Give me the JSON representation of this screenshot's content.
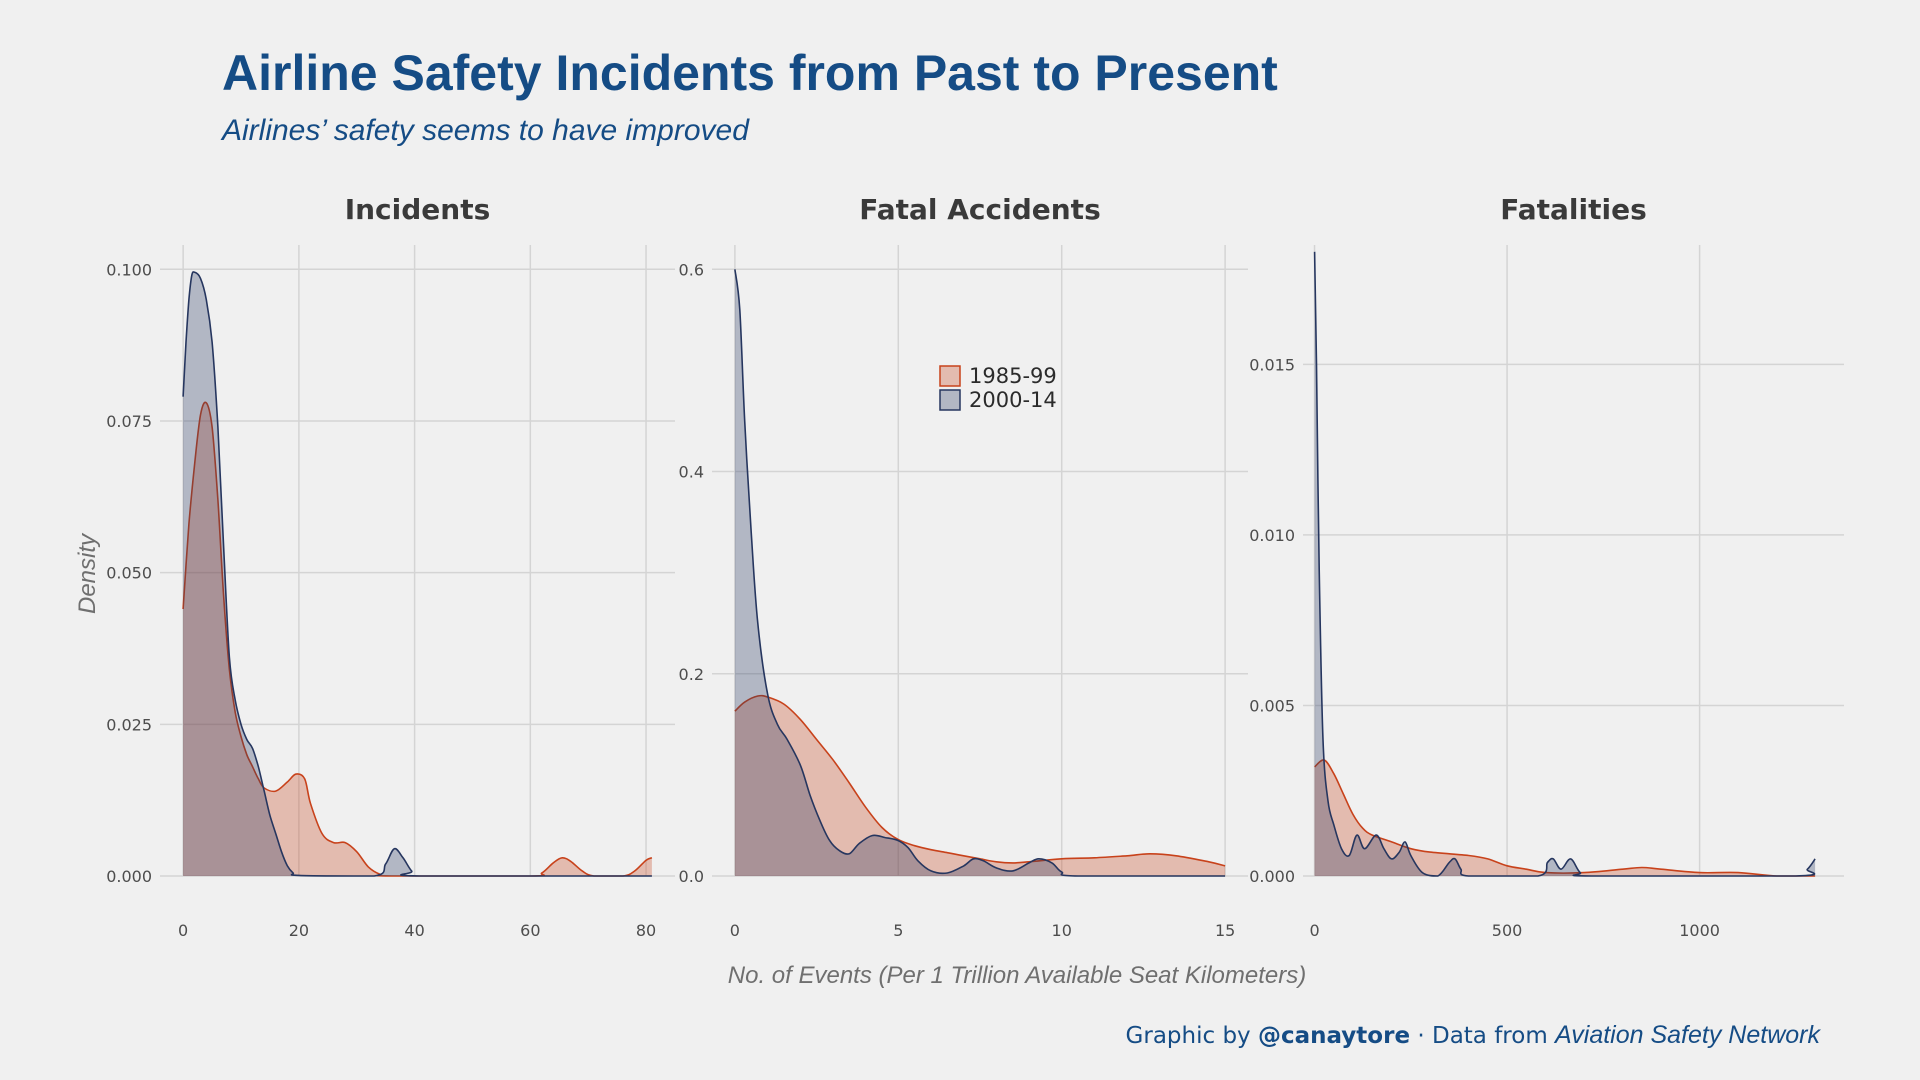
{
  "header": {
    "title": "Airline Safety Incidents from Past to Present",
    "subtitle": "Airlines’ safety seems to have improved"
  },
  "caption": {
    "prefix": "Graphic by ",
    "author": "@canaytore",
    "middle": " · Data from ",
    "source": "Aviation Safety Network"
  },
  "colors": {
    "series_1985_99": "#c8421b",
    "series_2000_14": "#26365f",
    "title": "#154c85"
  },
  "chart_data": {
    "type": "area",
    "ylabel": "Density",
    "xlabel": "No. of Events (Per 1 Trillion Available Seat Kilometers)",
    "legend": {
      "placement": "inside-middle-panel-top",
      "entries": [
        "1985-99",
        "2000-14"
      ]
    },
    "grid": true,
    "panels": [
      {
        "title": "Incidents",
        "xlim": [
          -4,
          85
        ],
        "ylim": [
          0,
          0.104
        ],
        "xticks": [
          0,
          20,
          40,
          60,
          80
        ],
        "xtick_labels": [
          "0",
          "20",
          "40",
          "60",
          "80"
        ],
        "yticks": [
          0,
          0.025,
          0.05,
          0.075,
          0.1
        ],
        "ytick_labels": [
          "0.000",
          "0.025",
          "0.050",
          "0.075",
          "0.100"
        ],
        "series": [
          {
            "name": "1985-99",
            "points": [
              [
                0,
                0.044
              ],
              [
                1,
                0.058
              ],
              [
                2,
                0.068
              ],
              [
                3,
                0.076
              ],
              [
                4,
                0.078
              ],
              [
                5,
                0.074
              ],
              [
                6,
                0.062
              ],
              [
                7,
                0.046
              ],
              [
                8,
                0.034
              ],
              [
                9,
                0.027
              ],
              [
                10,
                0.023
              ],
              [
                11,
                0.02
              ],
              [
                12,
                0.018
              ],
              [
                13,
                0.016
              ],
              [
                14,
                0.0145
              ],
              [
                16,
                0.014
              ],
              [
                18,
                0.0155
              ],
              [
                19.5,
                0.0168
              ],
              [
                21,
                0.016
              ],
              [
                22,
                0.012
              ],
              [
                24,
                0.007
              ],
              [
                26,
                0.0055
              ],
              [
                28,
                0.0055
              ],
              [
                30,
                0.004
              ],
              [
                32,
                0.0015
              ],
              [
                34,
                0.0003
              ],
              [
                36,
                0
              ],
              [
                60,
                0
              ],
              [
                62,
                0.0005
              ],
              [
                64,
                0.0022
              ],
              [
                65.5,
                0.003
              ],
              [
                67,
                0.0024
              ],
              [
                69,
                0.0008
              ],
              [
                71,
                0
              ],
              [
                76,
                0
              ],
              [
                78,
                0.0008
              ],
              [
                80,
                0.0026
              ],
              [
                81,
                0.003
              ]
            ]
          },
          {
            "name": "2000-14",
            "points": [
              [
                0,
                0.079
              ],
              [
                0.5,
                0.088
              ],
              [
                1,
                0.095
              ],
              [
                1.5,
                0.099
              ],
              [
                2,
                0.0995
              ],
              [
                3,
                0.0985
              ],
              [
                4,
                0.095
              ],
              [
                5,
                0.088
              ],
              [
                6,
                0.074
              ],
              [
                7,
                0.054
              ],
              [
                8,
                0.036
              ],
              [
                9,
                0.029
              ],
              [
                10,
                0.025
              ],
              [
                11,
                0.0225
              ],
              [
                12,
                0.021
              ],
              [
                13,
                0.018
              ],
              [
                14,
                0.014
              ],
              [
                15,
                0.01
              ],
              [
                16,
                0.007
              ],
              [
                17,
                0.004
              ],
              [
                18,
                0.0017
              ],
              [
                19,
                0.0005
              ],
              [
                20,
                0.0001
              ],
              [
                33,
                0
              ],
              [
                35,
                0.002
              ],
              [
                36.5,
                0.0045
              ],
              [
                38,
                0.003
              ],
              [
                39.5,
                0.0008
              ],
              [
                41,
                0
              ],
              [
                81,
                0
              ]
            ]
          }
        ]
      },
      {
        "title": "Fatal Accidents",
        "xlim": [
          -0.7,
          15.7
        ],
        "ylim": [
          0,
          0.624
        ],
        "xticks": [
          0,
          5,
          10,
          15
        ],
        "xtick_labels": [
          "0",
          "5",
          "10",
          "15"
        ],
        "yticks": [
          0,
          0.2,
          0.4,
          0.6
        ],
        "ytick_labels": [
          "0.0",
          "0.2",
          "0.4",
          "0.6"
        ],
        "series": [
          {
            "name": "1985-99",
            "points": [
              [
                0,
                0.163
              ],
              [
                0.3,
                0.172
              ],
              [
                0.7,
                0.178
              ],
              [
                1,
                0.177
              ],
              [
                1.5,
                0.17
              ],
              [
                2,
                0.155
              ],
              [
                2.5,
                0.135
              ],
              [
                3,
                0.115
              ],
              [
                3.5,
                0.092
              ],
              [
                4,
                0.068
              ],
              [
                4.5,
                0.048
              ],
              [
                5,
                0.036
              ],
              [
                5.5,
                0.03
              ],
              [
                6,
                0.026
              ],
              [
                6.5,
                0.023
              ],
              [
                7,
                0.02
              ],
              [
                7.5,
                0.017
              ],
              [
                8,
                0.014
              ],
              [
                8.5,
                0.013
              ],
              [
                9,
                0.014
              ],
              [
                10,
                0.017
              ],
              [
                11,
                0.018
              ],
              [
                12,
                0.02
              ],
              [
                12.7,
                0.022
              ],
              [
                13.5,
                0.02
              ],
              [
                14.5,
                0.014
              ],
              [
                15,
                0.01
              ]
            ]
          },
          {
            "name": "2000-14",
            "points": [
              [
                0,
                0.6
              ],
              [
                0.15,
                0.56
              ],
              [
                0.3,
                0.45
              ],
              [
                0.5,
                0.34
              ],
              [
                0.7,
                0.25
              ],
              [
                1,
                0.18
              ],
              [
                1.3,
                0.15
              ],
              [
                1.6,
                0.135
              ],
              [
                2,
                0.11
              ],
              [
                2.3,
                0.08
              ],
              [
                2.6,
                0.055
              ],
              [
                2.9,
                0.035
              ],
              [
                3.2,
                0.025
              ],
              [
                3.5,
                0.022
              ],
              [
                3.8,
                0.032
              ],
              [
                4.2,
                0.04
              ],
              [
                4.6,
                0.038
              ],
              [
                5,
                0.035
              ],
              [
                5.3,
                0.028
              ],
              [
                5.6,
                0.015
              ],
              [
                6,
                0.005
              ],
              [
                6.5,
                0.003
              ],
              [
                7,
                0.01
              ],
              [
                7.3,
                0.017
              ],
              [
                7.6,
                0.015
              ],
              [
                8,
                0.008
              ],
              [
                8.5,
                0.005
              ],
              [
                9,
                0.013
              ],
              [
                9.3,
                0.017
              ],
              [
                9.7,
                0.013
              ],
              [
                10,
                0.004
              ],
              [
                10.5,
                0
              ],
              [
                15,
                0
              ]
            ]
          }
        ]
      },
      {
        "title": "Fatalities",
        "xlim": [
          -30,
          1375
        ],
        "ylim": [
          0,
          0.0185
        ],
        "xticks": [
          0,
          500,
          1000
        ],
        "xtick_labels": [
          "0",
          "500",
          "1000"
        ],
        "yticks": [
          0,
          0.005,
          0.01,
          0.015
        ],
        "ytick_labels": [
          "0.000",
          "0.005",
          "0.010",
          "0.015"
        ],
        "series": [
          {
            "name": "1985-99",
            "points": [
              [
                0,
                0.0032
              ],
              [
                25,
                0.0034
              ],
              [
                50,
                0.003
              ],
              [
                75,
                0.0024
              ],
              [
                100,
                0.0018
              ],
              [
                125,
                0.0014
              ],
              [
                150,
                0.0012
              ],
              [
                200,
                0.001
              ],
              [
                250,
                0.0008
              ],
              [
                300,
                0.0007
              ],
              [
                400,
                0.0006
              ],
              [
                450,
                0.0005
              ],
              [
                500,
                0.0003
              ],
              [
                550,
                0.0002
              ],
              [
                600,
                0.0001
              ],
              [
                700,
                0.0001
              ],
              [
                800,
                0.0002
              ],
              [
                850,
                0.00025
              ],
              [
                900,
                0.0002
              ],
              [
                1000,
                0.0001
              ],
              [
                1100,
                0.0001
              ],
              [
                1200,
                0
              ],
              [
                1300,
                0
              ]
            ]
          },
          {
            "name": "2000-14",
            "points": [
              [
                0,
                0.0183
              ],
              [
                5,
                0.015
              ],
              [
                12,
                0.009
              ],
              [
                22,
                0.004
              ],
              [
                35,
                0.0022
              ],
              [
                50,
                0.0015
              ],
              [
                70,
                0.0008
              ],
              [
                90,
                0.0006
              ],
              [
                110,
                0.0012
              ],
              [
                130,
                0.0008
              ],
              [
                160,
                0.0012
              ],
              [
                180,
                0.0008
              ],
              [
                200,
                0.0005
              ],
              [
                220,
                0.0007
              ],
              [
                235,
                0.001
              ],
              [
                250,
                0.0006
              ],
              [
                280,
                0.0001
              ],
              [
                320,
                0
              ],
              [
                350,
                0.0004
              ],
              [
                365,
                0.0005
              ],
              [
                380,
                0.0002
              ],
              [
                400,
                0
              ],
              [
                580,
                0
              ],
              [
                605,
                0.0004
              ],
              [
                620,
                0.0005
              ],
              [
                640,
                0.0002
              ],
              [
                665,
                0.0005
              ],
              [
                690,
                0.0001
              ],
              [
                720,
                0
              ],
              [
                1250,
                0
              ],
              [
                1280,
                0.0002
              ],
              [
                1300,
                0.0005
              ]
            ]
          }
        ]
      }
    ]
  }
}
